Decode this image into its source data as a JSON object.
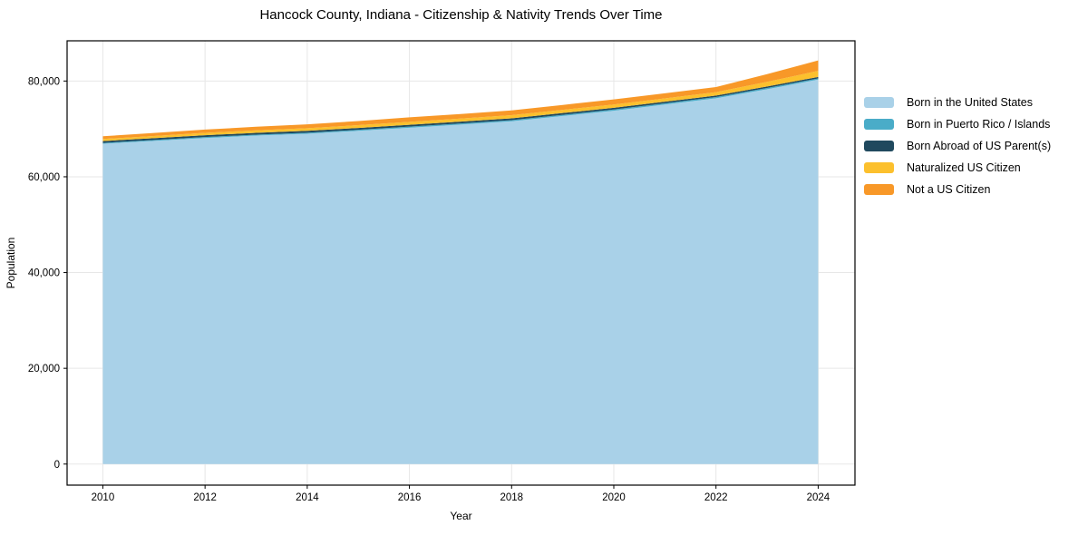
{
  "figure": {
    "background": "#ffffff",
    "grid_color": "#e7e7e7",
    "spine_color": "#000000",
    "text_color": "#000000"
  },
  "chart_data": {
    "type": "area",
    "stacked": true,
    "title": "Hancock County, Indiana - Citizenship & Nativity Trends Over Time",
    "xlabel": "Year",
    "ylabel": "Population",
    "grid": true,
    "legend_position": "right",
    "x": [
      2010,
      2011,
      2012,
      2013,
      2014,
      2015,
      2016,
      2017,
      2018,
      2019,
      2020,
      2021,
      2022,
      2023,
      2024
    ],
    "series": [
      {
        "name": "Born in the United States",
        "color": "#a9d1e8",
        "values": [
          66900,
          67500,
          68100,
          68600,
          69000,
          69600,
          70250,
          70900,
          71600,
          72700,
          73800,
          75100,
          76400,
          78300,
          80300
        ]
      },
      {
        "name": "Born in Puerto Rico / Islands",
        "color": "#4aacc8",
        "values": [
          180,
          185,
          190,
          200,
          210,
          215,
          230,
          235,
          240,
          245,
          250,
          250,
          250,
          250,
          250
        ]
      },
      {
        "name": "Born Abroad of US Parent(s)",
        "color": "#20495e",
        "values": [
          380,
          380,
          385,
          385,
          385,
          380,
          380,
          375,
          370,
          365,
          350,
          335,
          320,
          310,
          300
        ]
      },
      {
        "name": "Naturalized US Citizen",
        "color": "#fcc02d",
        "values": [
          430,
          460,
          490,
          520,
          550,
          580,
          620,
          640,
          660,
          680,
          690,
          695,
          700,
          980,
          1270
        ]
      },
      {
        "name": "Not a US Citizen",
        "color": "#f89828",
        "values": [
          570,
          630,
          690,
          740,
          800,
          870,
          940,
          960,
          990,
          1020,
          1060,
          1060,
          1060,
          1600,
          2190
        ]
      }
    ],
    "xticks": [
      2010,
      2012,
      2014,
      2016,
      2018,
      2020,
      2022,
      2024
    ],
    "xtick_labels": [
      "2010",
      "2012",
      "2014",
      "2016",
      "2018",
      "2020",
      "2022",
      "2024"
    ],
    "yticks": [
      0,
      20000,
      40000,
      60000,
      80000
    ],
    "ytick_labels": [
      "0",
      "20,000",
      "40,000",
      "60,000",
      "80,000"
    ],
    "xlim": [
      2009.3,
      2024.72
    ],
    "ylim": [
      -4400,
      88400
    ]
  }
}
